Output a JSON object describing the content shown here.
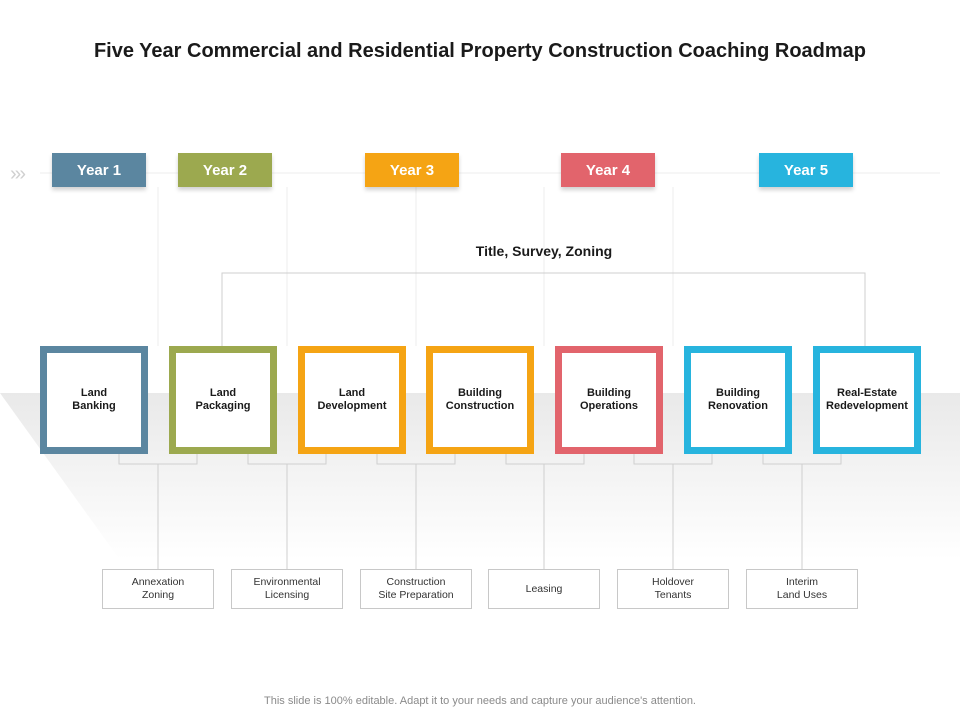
{
  "title": "Five Year Commercial and Residential Property Construction Coaching Roadmap",
  "chevron": "›››",
  "years": [
    {
      "label": "Year 1",
      "color": "#5b86a0"
    },
    {
      "label": "Year 2",
      "color": "#9ca94f"
    },
    {
      "label": "Year 3",
      "color": "#f5a414"
    },
    {
      "label": "Year 4",
      "color": "#e2646c"
    },
    {
      "label": "Year 5",
      "color": "#27b4de"
    }
  ],
  "group_title": "Title,  Survey, Zoning",
  "stages": [
    {
      "label": "Land\nBanking",
      "color": "#5b86a0"
    },
    {
      "label": "Land\nPackaging",
      "color": "#9ca94f"
    },
    {
      "label": "Land\nDevelopment",
      "color": "#f5a414"
    },
    {
      "label": "Building\nConstruction",
      "color": "#f5a414"
    },
    {
      "label": "Building\nOperations",
      "color": "#e2646c"
    },
    {
      "label": "Building\nRenovation",
      "color": "#27b4de"
    },
    {
      "label": "Real-Estate\nRedevelopment",
      "color": "#27b4de"
    }
  ],
  "outcomes": [
    {
      "label": "Annexation\nZoning"
    },
    {
      "label": "Environmental\nLicensing"
    },
    {
      "label": "Construction\nSite Preparation"
    },
    {
      "label": "Leasing"
    },
    {
      "label": "Holdover\nTenants"
    },
    {
      "label": "Interim\nLand Uses"
    }
  ],
  "footer": "This slide is 100% editable. Adapt it to your needs and capture your audience's attention."
}
